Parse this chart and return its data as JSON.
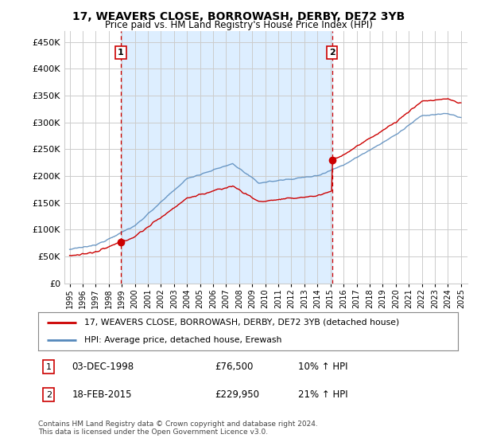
{
  "title": "17, WEAVERS CLOSE, BORROWASH, DERBY, DE72 3YB",
  "subtitle": "Price paid vs. HM Land Registry's House Price Index (HPI)",
  "legend_line1": "17, WEAVERS CLOSE, BORROWASH, DERBY, DE72 3YB (detached house)",
  "legend_line2": "HPI: Average price, detached house, Erewash",
  "footnote1": "Contains HM Land Registry data © Crown copyright and database right 2024.",
  "footnote2": "This data is licensed under the Open Government Licence v3.0.",
  "annotation1_date": "03-DEC-1998",
  "annotation1_price": "£76,500",
  "annotation1_hpi": "10% ↑ HPI",
  "annotation2_date": "18-FEB-2015",
  "annotation2_price": "£229,950",
  "annotation2_hpi": "21% ↑ HPI",
  "ylim": [
    0,
    470000
  ],
  "yticks": [
    0,
    50000,
    100000,
    150000,
    200000,
    250000,
    300000,
    350000,
    400000,
    450000
  ],
  "red_color": "#cc0000",
  "blue_color": "#5588bb",
  "shade_color": "#ddeeff",
  "background_color": "#ffffff",
  "grid_color": "#cccccc",
  "sale1_year": 1998.92,
  "sale1_price": 76500,
  "sale2_year": 2015.12,
  "sale2_price": 229950,
  "vline1_year": 1998.92,
  "vline2_year": 2015.12,
  "xlim_left": 1994.6,
  "xlim_right": 2025.5
}
